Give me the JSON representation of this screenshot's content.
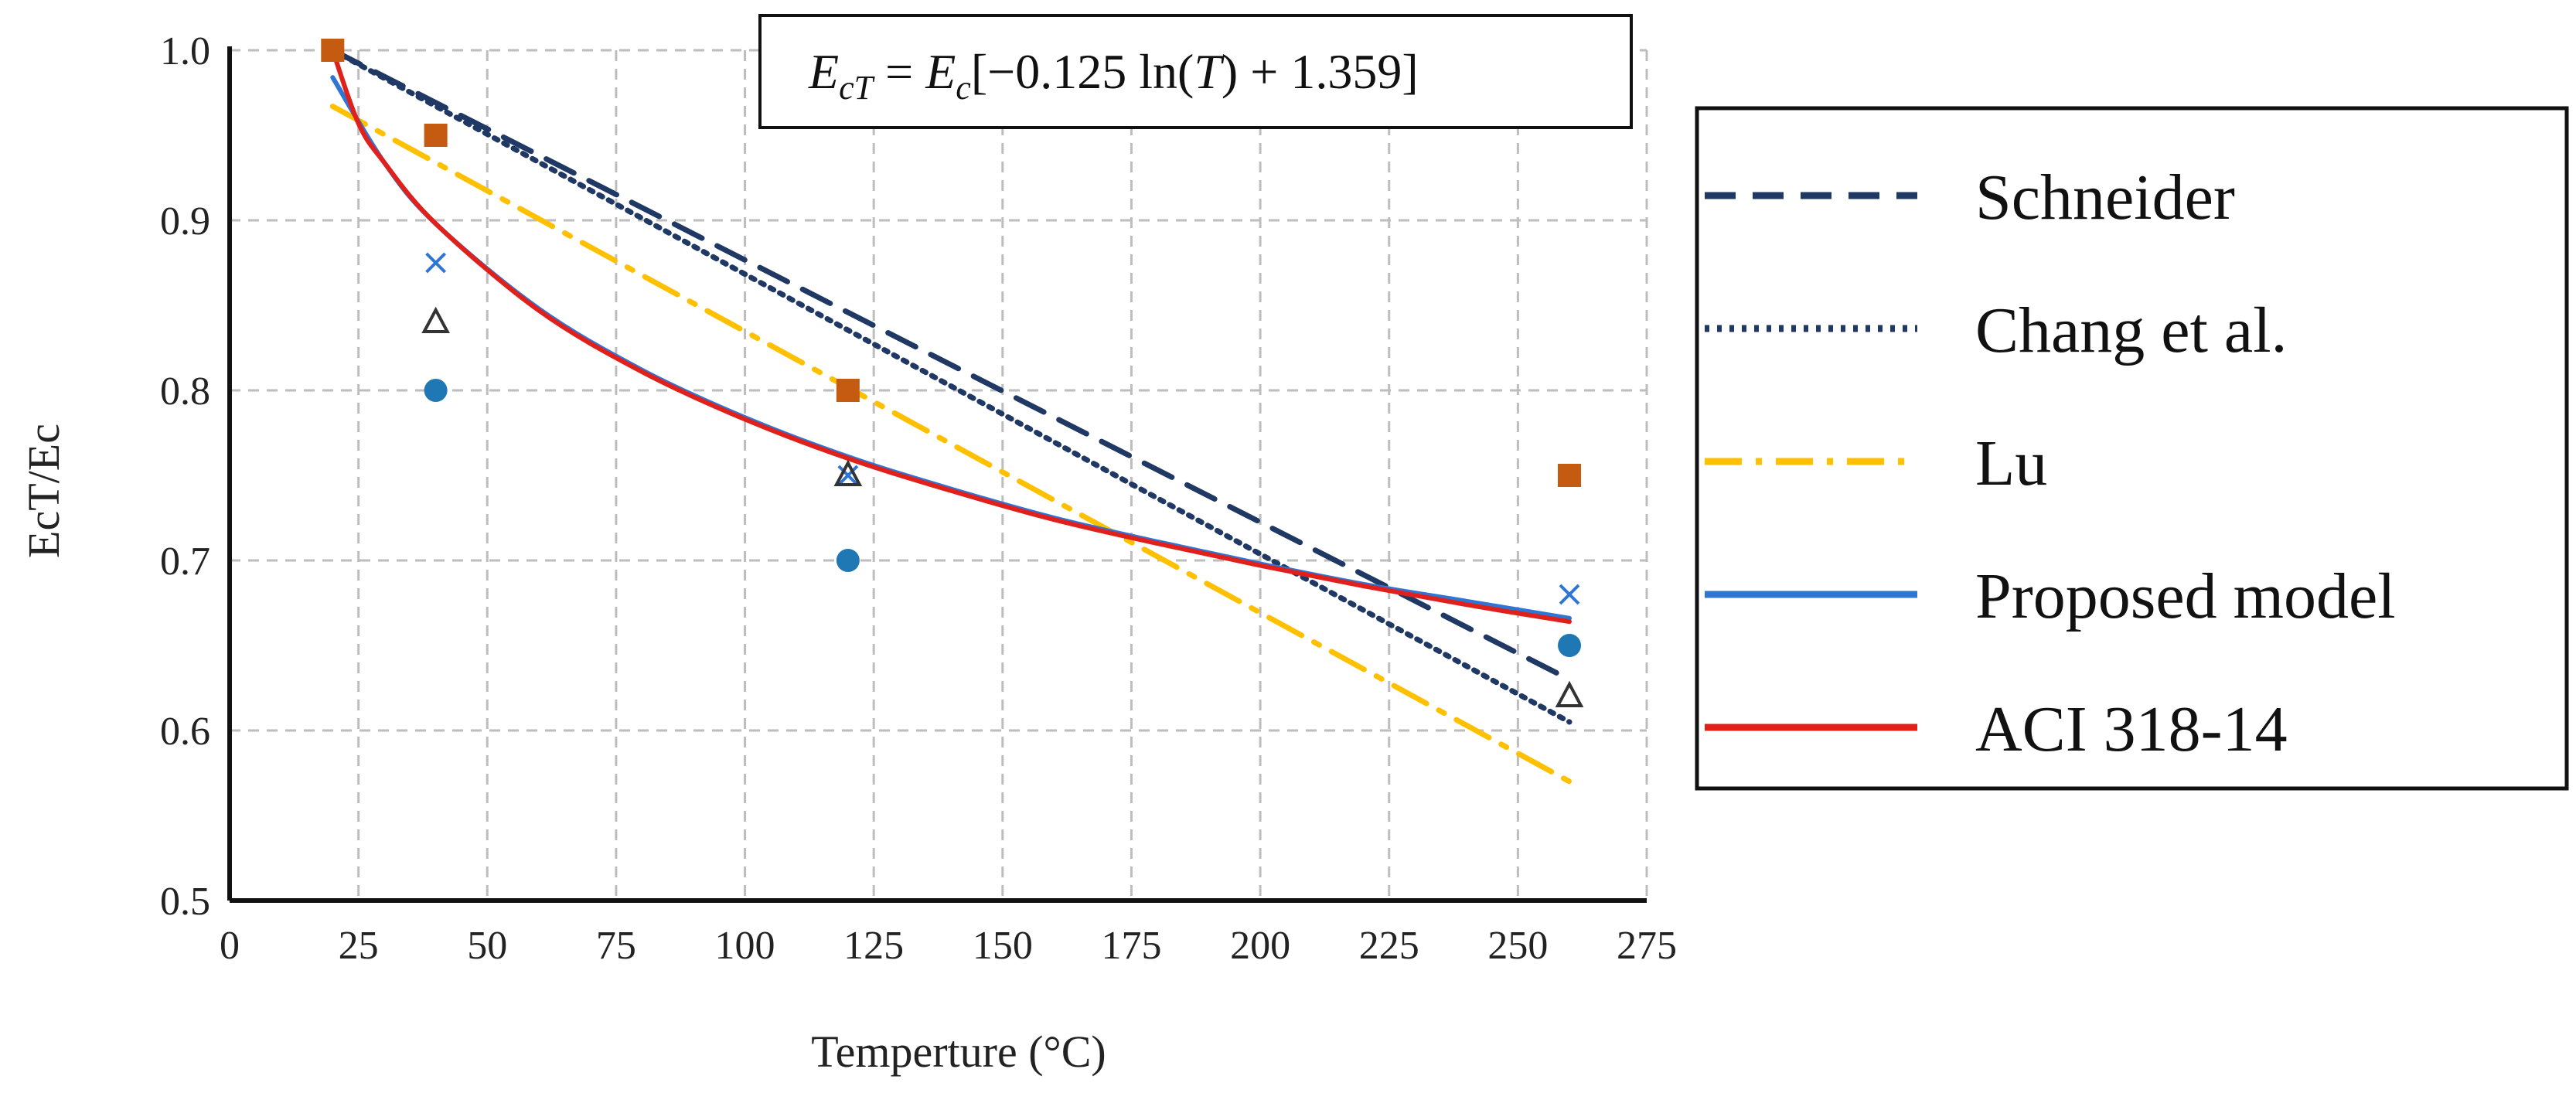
{
  "chart_data": {
    "type": "line",
    "title": "",
    "xlabel": "Temperture (°C)",
    "ylabel": "EcT/Ec",
    "xlim": [
      0,
      275
    ],
    "ylim": [
      0.5,
      1.0
    ],
    "grid": true,
    "x_ticks": [
      "0",
      "25",
      "50",
      "75",
      "100",
      "125",
      "150",
      "175",
      "200",
      "225",
      "250",
      "275"
    ],
    "y_ticks": [
      "0.5",
      "0.6",
      "0.7",
      "0.8",
      "0.9",
      "1.0"
    ],
    "equation": {
      "lhs_var": "E",
      "lhs_sub": "cT",
      "rhs_var": "E",
      "rhs_sub": "c",
      "bracket": "[−0.125 ln(",
      "arg": "T",
      "tail": ") + 1.359]"
    },
    "series": [
      {
        "name": "Schneider",
        "style": "dashed",
        "color": "#1f3864",
        "x": [
          20,
          260
        ],
        "y": [
          1.0,
          0.63
        ]
      },
      {
        "name": "Chang et al.",
        "style": "dotted",
        "color": "#1f3864",
        "x": [
          20,
          260
        ],
        "y": [
          1.0,
          0.605
        ]
      },
      {
        "name": "Lu",
        "style": "dashdot",
        "color": "#ffc000",
        "x": [
          20,
          260
        ],
        "y": [
          0.967,
          0.57
        ]
      },
      {
        "name": "Proposed model",
        "style": "solid",
        "color": "#2e75d6",
        "x": [
          20,
          30,
          40,
          60,
          80,
          100,
          120,
          140,
          160,
          180,
          200,
          220,
          240,
          260
        ],
        "y": [
          0.984,
          0.934,
          0.898,
          0.848,
          0.812,
          0.784,
          0.761,
          0.742,
          0.725,
          0.711,
          0.698,
          0.686,
          0.676,
          0.666
        ]
      },
      {
        "name": "ACI 318-14",
        "style": "solid",
        "color": "#e0201b",
        "x": [
          20,
          25,
          30,
          40,
          60,
          80,
          100,
          120,
          140,
          160,
          180,
          200,
          220,
          240,
          260
        ],
        "y": [
          1.0,
          0.957,
          0.934,
          0.898,
          0.847,
          0.811,
          0.783,
          0.76,
          0.741,
          0.724,
          0.71,
          0.697,
          0.685,
          0.674,
          0.664
        ]
      }
    ],
    "markers": [
      {
        "shape": "square",
        "color": "#c55a11",
        "x": [
          20,
          40,
          120,
          260
        ],
        "y": [
          1.0,
          0.95,
          0.8,
          0.75
        ]
      },
      {
        "shape": "cross",
        "color": "#2e75d6",
        "x": [
          40,
          120,
          260
        ],
        "y": [
          0.875,
          0.75,
          0.68
        ]
      },
      {
        "shape": "triangle",
        "color": "#333333",
        "x": [
          40,
          120,
          260
        ],
        "y": [
          0.84,
          0.75,
          0.62
        ]
      },
      {
        "shape": "circle",
        "color": "#1f77b4",
        "x": [
          40,
          120,
          260
        ],
        "y": [
          0.8,
          0.7,
          0.65
        ]
      }
    ]
  }
}
